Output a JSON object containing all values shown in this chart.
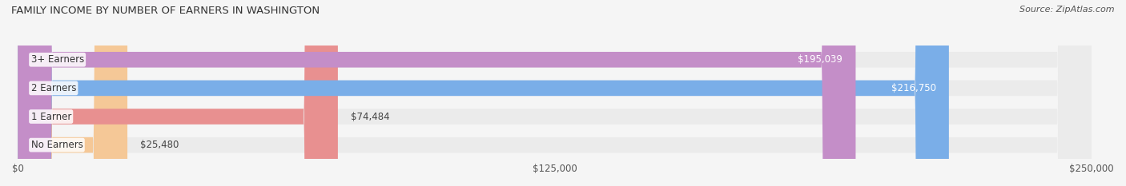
{
  "title": "FAMILY INCOME BY NUMBER OF EARNERS IN WASHINGTON",
  "source": "Source: ZipAtlas.com",
  "categories": [
    "No Earners",
    "1 Earner",
    "2 Earners",
    "3+ Earners"
  ],
  "values": [
    25480,
    74484,
    216750,
    195039
  ],
  "bar_colors": [
    "#f5c897",
    "#e89090",
    "#7aaee8",
    "#c48ec8"
  ],
  "bar_bg_color": "#ebebeb",
  "label_colors": [
    "#555555",
    "#555555",
    "#ffffff",
    "#ffffff"
  ],
  "xlim": [
    0,
    250000
  ],
  "xticks": [
    0,
    125000,
    250000
  ],
  "xticklabels": [
    "$0",
    "$125,000",
    "$250,000"
  ],
  "bar_height": 0.55,
  "figsize": [
    14.06,
    2.33
  ],
  "dpi": 100,
  "background_color": "#f5f5f5"
}
